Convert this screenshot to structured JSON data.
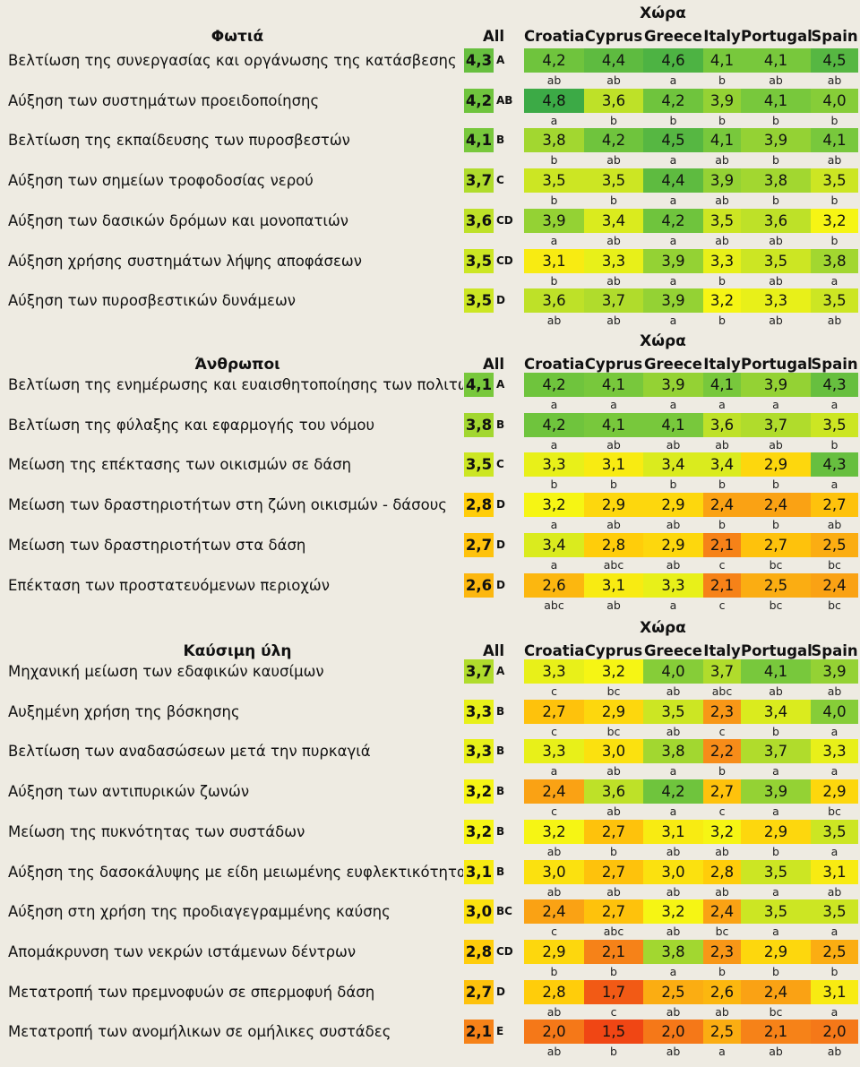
{
  "countries": [
    "Croatia",
    "Cyprus",
    "Greece",
    "Italy",
    "Portugal",
    "Spain"
  ],
  "header_group_label": "Χώρα",
  "header_all_label": "All",
  "sections": [
    {
      "title": "Φωτιά",
      "rows": [
        {
          "label": "Βελτίωση της συνεργασίας και οργάνωσης της κατάσβεσης",
          "all": "4,3",
          "all_group": "A",
          "values": [
            "4,2",
            "4,4",
            "4,6",
            "4,1",
            "4,1",
            "4,5"
          ],
          "letters": [
            "ab",
            "ab",
            "a",
            "b",
            "ab",
            "ab"
          ]
        },
        {
          "label": "Αύξηση των συστημάτων προειδοποίησης",
          "all": "4,2",
          "all_group": "AB",
          "values": [
            "4,8",
            "3,6",
            "4,2",
            "3,9",
            "4,1",
            "4,0"
          ],
          "letters": [
            "a",
            "b",
            "b",
            "b",
            "b",
            "b"
          ]
        },
        {
          "label": "Βελτίωση της εκπαίδευσης των πυροσβεστών",
          "all": "4,1",
          "all_group": "B",
          "values": [
            "3,8",
            "4,2",
            "4,5",
            "4,1",
            "3,9",
            "4,1"
          ],
          "letters": [
            "b",
            "ab",
            "a",
            "ab",
            "b",
            "ab"
          ]
        },
        {
          "label": "Αύξηση των σημείων τροφοδοσίας νερού",
          "all": "3,7",
          "all_group": "C",
          "values": [
            "3,5",
            "3,5",
            "4,4",
            "3,9",
            "3,8",
            "3,5"
          ],
          "letters": [
            "b",
            "b",
            "a",
            "ab",
            "b",
            "b"
          ]
        },
        {
          "label": "Αύξηση των δασικών δρόμων και μονοπατιών",
          "all": "3,6",
          "all_group": "CD",
          "values": [
            "3,9",
            "3,4",
            "4,2",
            "3,5",
            "3,6",
            "3,2"
          ],
          "letters": [
            "a",
            "ab",
            "a",
            "ab",
            "ab",
            "b"
          ]
        },
        {
          "label": "Αύξηση χρήσης συστημάτων λήψης αποφάσεων",
          "all": "3,5",
          "all_group": "CD",
          "values": [
            "3,1",
            "3,3",
            "3,9",
            "3,3",
            "3,5",
            "3,8"
          ],
          "letters": [
            "b",
            "ab",
            "a",
            "b",
            "ab",
            "a"
          ]
        },
        {
          "label": "Αύξηση των πυροσβεστικών δυνάμεων",
          "all": "3,5",
          "all_group": "D",
          "values": [
            "3,6",
            "3,7",
            "3,9",
            "3,2",
            "3,3",
            "3,5"
          ],
          "letters": [
            "ab",
            "ab",
            "a",
            "b",
            "ab",
            "ab"
          ]
        }
      ]
    },
    {
      "title": "Άνθρωποι",
      "rows": [
        {
          "label": "Βελτίωση της ενημέρωσης και ευαισθητοποίησης των πολιτών",
          "all": "4,1",
          "all_group": "A",
          "values": [
            "4,2",
            "4,1",
            "3,9",
            "4,1",
            "3,9",
            "4,3"
          ],
          "letters": [
            "a",
            "a",
            "a",
            "a",
            "a",
            "a"
          ]
        },
        {
          "label": "Βελτίωση της φύλαξης και εφαρμογής του νόμου",
          "all": "3,8",
          "all_group": "B",
          "values": [
            "4,2",
            "4,1",
            "4,1",
            "3,6",
            "3,7",
            "3,5"
          ],
          "letters": [
            "a",
            "ab",
            "ab",
            "ab",
            "ab",
            "b"
          ]
        },
        {
          "label": "Μείωση της επέκτασης των οικισμών σε δάση",
          "all": "3,5",
          "all_group": "C",
          "values": [
            "3,3",
            "3,1",
            "3,4",
            "3,4",
            "2,9",
            "4,3"
          ],
          "letters": [
            "b",
            "b",
            "b",
            "b",
            "b",
            "a"
          ]
        },
        {
          "label": "Μείωση των δραστηριοτήτων στη ζώνη οικισμών - δάσους",
          "all": "2,8",
          "all_group": "D",
          "values": [
            "3,2",
            "2,9",
            "2,9",
            "2,4",
            "2,4",
            "2,7"
          ],
          "letters": [
            "a",
            "ab",
            "ab",
            "b",
            "b",
            "ab"
          ]
        },
        {
          "label": "Μείωση των δραστηριοτήτων στα δάση",
          "all": "2,7",
          "all_group": "D",
          "values": [
            "3,4",
            "2,8",
            "2,9",
            "2,1",
            "2,7",
            "2,5"
          ],
          "letters": [
            "a",
            "abc",
            "ab",
            "c",
            "bc",
            "bc"
          ]
        },
        {
          "label": "Επέκταση των προστατευόμενων περιοχών",
          "all": "2,6",
          "all_group": "D",
          "values": [
            "2,6",
            "3,1",
            "3,3",
            "2,1",
            "2,5",
            "2,4"
          ],
          "letters": [
            "abc",
            "ab",
            "a",
            "c",
            "bc",
            "bc"
          ]
        }
      ]
    },
    {
      "title": "Καύσιμη ύλη",
      "rows": [
        {
          "label": "Μηχανική μείωση των εδαφικών καυσίμων",
          "all": "3,7",
          "all_group": "A",
          "values": [
            "3,3",
            "3,2",
            "4,0",
            "3,7",
            "4,1",
            "3,9"
          ],
          "letters": [
            "c",
            "bc",
            "ab",
            "abc",
            "ab",
            "ab"
          ]
        },
        {
          "label": "Αυξημένη χρήση της βόσκησης",
          "all": "3,3",
          "all_group": "B",
          "values": [
            "2,7",
            "2,9",
            "3,5",
            "2,3",
            "3,4",
            "4,0"
          ],
          "letters": [
            "c",
            "bc",
            "ab",
            "c",
            "b",
            "a"
          ]
        },
        {
          "label": "Βελτίωση των αναδασώσεων μετά την πυρκαγιά",
          "all": "3,3",
          "all_group": "B",
          "values": [
            "3,3",
            "3,0",
            "3,8",
            "2,2",
            "3,7",
            "3,3"
          ],
          "letters": [
            "a",
            "ab",
            "a",
            "b",
            "a",
            "a"
          ]
        },
        {
          "label": "Αύξηση των αντιπυρικών ζωνών",
          "all": "3,2",
          "all_group": "B",
          "values": [
            "2,4",
            "3,6",
            "4,2",
            "2,7",
            "3,9",
            "2,9"
          ],
          "letters": [
            "c",
            "ab",
            "a",
            "c",
            "a",
            "bc"
          ]
        },
        {
          "label": "Μείωση της πυκνότητας των συστάδων",
          "all": "3,2",
          "all_group": "B",
          "values": [
            "3,2",
            "2,7",
            "3,1",
            "3,2",
            "2,9",
            "3,5"
          ],
          "letters": [
            "ab",
            "b",
            "ab",
            "ab",
            "b",
            "a"
          ]
        },
        {
          "label": "Αύξηση της δασοκάλυψης με είδη μειωμένης ευφλεκτικότητας",
          "all": "3,1",
          "all_group": "B",
          "values": [
            "3,0",
            "2,7",
            "3,0",
            "2,8",
            "3,5",
            "3,1"
          ],
          "letters": [
            "ab",
            "ab",
            "ab",
            "ab",
            "a",
            "ab"
          ]
        },
        {
          "label": "Αύξηση στη χρήση της προδιαγεγραμμένης καύσης",
          "all": "3,0",
          "all_group": "BC",
          "values": [
            "2,4",
            "2,7",
            "3,2",
            "2,4",
            "3,5",
            "3,5"
          ],
          "letters": [
            "c",
            "abc",
            "ab",
            "bc",
            "a",
            "a"
          ]
        },
        {
          "label": "Απομάκρυνση των νεκρών ιστάμενων δέντρων",
          "all": "2,8",
          "all_group": "CD",
          "values": [
            "2,9",
            "2,1",
            "3,8",
            "2,3",
            "2,9",
            "2,5"
          ],
          "letters": [
            "b",
            "b",
            "a",
            "b",
            "b",
            "b"
          ]
        },
        {
          "label": "Μετατροπή των πρεμνοφυών σε σπερμοφυή δάση",
          "all": "2,7",
          "all_group": "D",
          "values": [
            "2,8",
            "1,7",
            "2,5",
            "2,6",
            "2,4",
            "3,1"
          ],
          "letters": [
            "ab",
            "c",
            "ab",
            "ab",
            "bc",
            "a"
          ]
        },
        {
          "label": "Μετατροπή των ανομήλικων σε ομήλικες συστάδες",
          "all": "2,1",
          "all_group": "E",
          "values": [
            "2,0",
            "1,5",
            "2,0",
            "2,5",
            "2,1",
            "2,0"
          ],
          "letters": [
            "ab",
            "b",
            "ab",
            "a",
            "ab",
            "ab"
          ]
        }
      ]
    }
  ]
}
